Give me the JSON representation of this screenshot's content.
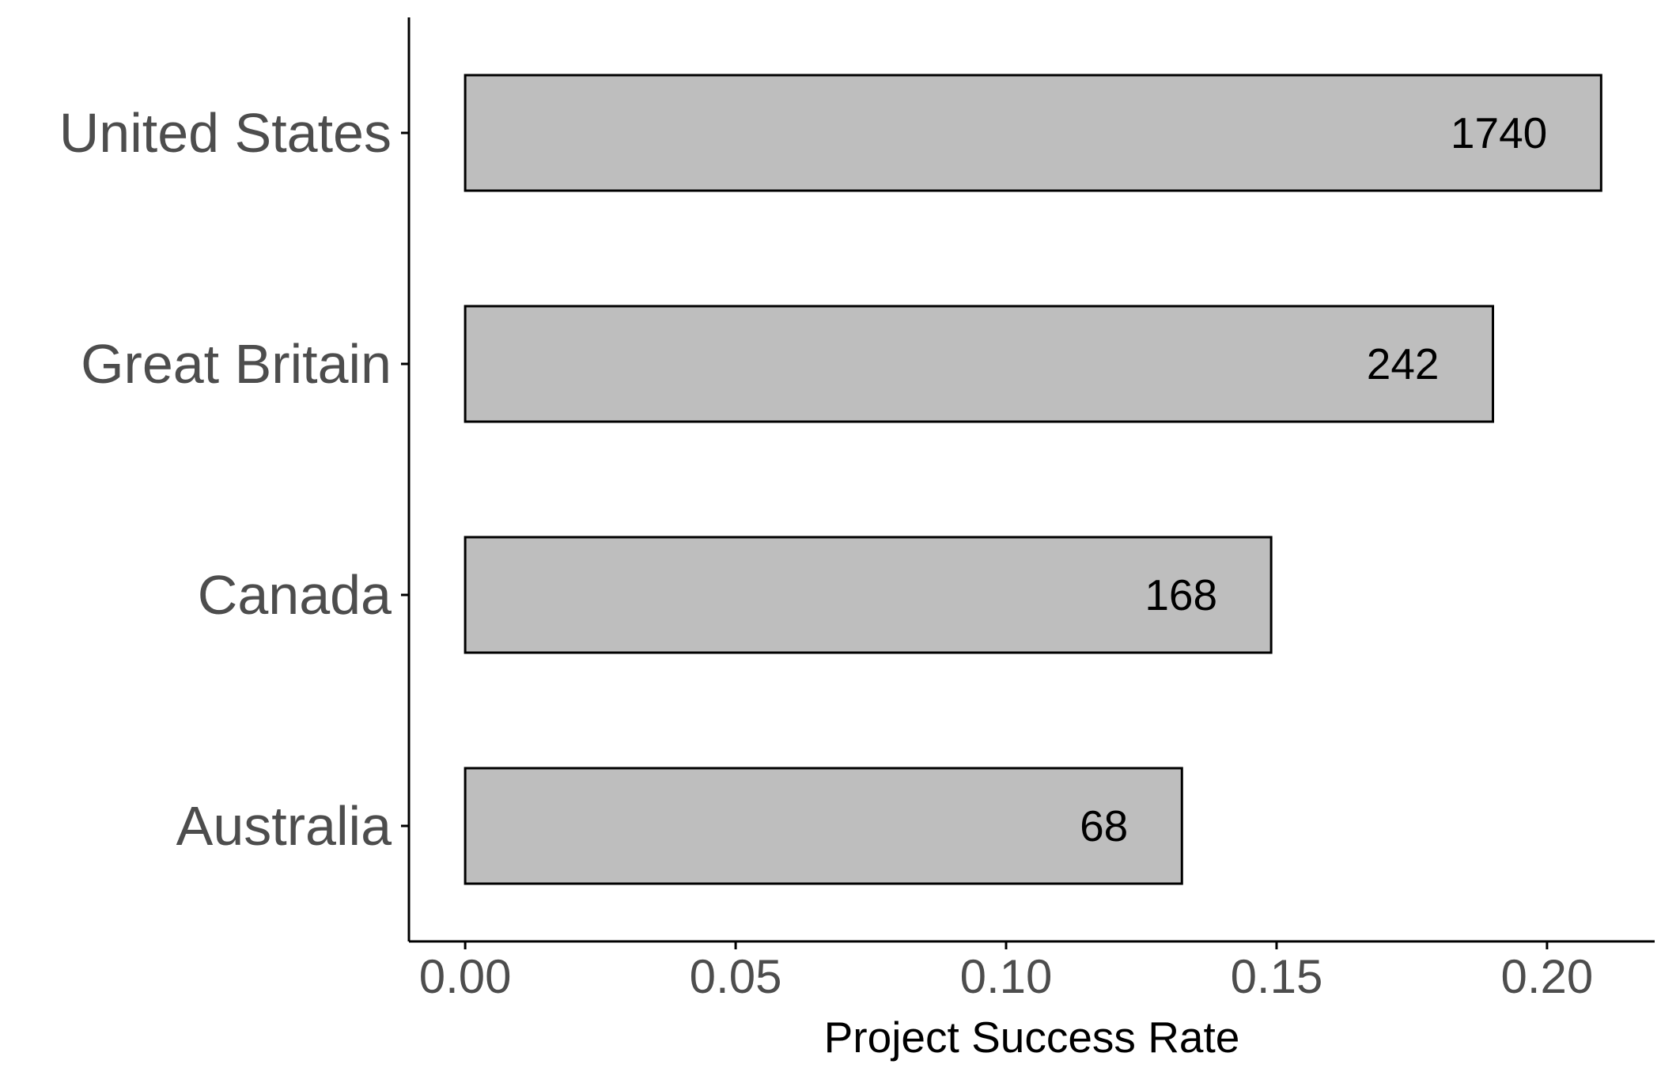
{
  "chart_data": {
    "type": "bar",
    "orientation": "horizontal",
    "categories": [
      "United States",
      "Great Britain",
      "Canada",
      "Australia"
    ],
    "values": [
      0.21,
      0.19,
      0.149,
      0.1325
    ],
    "bar_labels": [
      "1740",
      "242",
      "168",
      "68"
    ],
    "xlabel": "Project Success Rate",
    "ylabel": "",
    "title": "",
    "x_ticks": [
      "0.00",
      "0.05",
      "0.10",
      "0.15",
      "0.20"
    ],
    "x_tick_values": [
      0,
      0.05,
      0.1,
      0.15,
      0.2
    ],
    "xlim": [
      -0.0104,
      0.2199
    ],
    "grid": false,
    "legend": "none",
    "colors": {
      "bar_fill": "#bebebe",
      "bar_stroke": "#000000",
      "axis": "#000000",
      "tick_text": "#4d4d4d"
    }
  }
}
